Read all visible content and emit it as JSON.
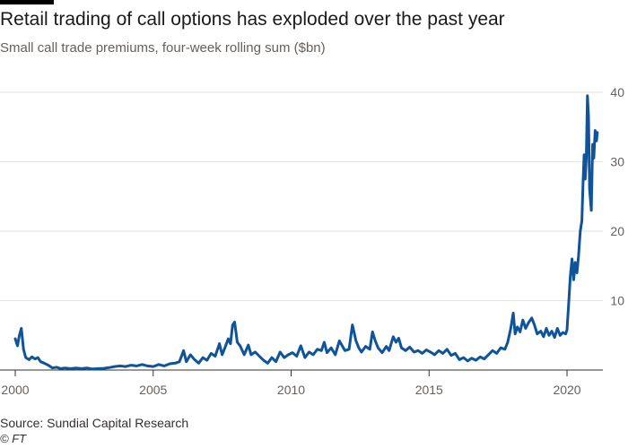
{
  "header": {
    "title": "Retail trading of call options has exploded over the past year",
    "subtitle": "Small call trade premiums, four-week rolling sum ($bn)"
  },
  "footer": {
    "source": "Source: Sundial Capital Research",
    "credit": "© FT"
  },
  "colors": {
    "line": "#0f5499",
    "grid": "#e6e2de",
    "axis": "#33302e",
    "text_muted": "#66605c"
  },
  "chart_data": {
    "type": "line",
    "title": "Retail trading of call options has exploded over the past year",
    "subtitle": "Small call trade premiums, four-week rolling sum ($bn)",
    "xlabel": "",
    "ylabel": "",
    "xlim": [
      2000,
      2021.3
    ],
    "ylim": [
      0,
      40
    ],
    "x_ticks": [
      2000,
      2005,
      2010,
      2015,
      2020
    ],
    "y_ticks": [
      10,
      20,
      30,
      40
    ],
    "y_axis_side": "right",
    "grid": "horizontal",
    "series": [
      {
        "name": "Small call trade premiums",
        "points": [
          [
            2000.0,
            4.5
          ],
          [
            2000.08,
            3.5
          ],
          [
            2000.15,
            5.0
          ],
          [
            2000.22,
            6.0
          ],
          [
            2000.3,
            3.0
          ],
          [
            2000.38,
            1.8
          ],
          [
            2000.5,
            1.5
          ],
          [
            2000.6,
            1.9
          ],
          [
            2000.72,
            1.6
          ],
          [
            2000.82,
            1.8
          ],
          [
            2000.92,
            1.2
          ],
          [
            2001.05,
            1.0
          ],
          [
            2001.2,
            0.7
          ],
          [
            2001.35,
            0.3
          ],
          [
            2001.5,
            0.4
          ],
          [
            2001.65,
            0.2
          ],
          [
            2001.8,
            0.3
          ],
          [
            2002.0,
            0.2
          ],
          [
            2002.2,
            0.3
          ],
          [
            2002.4,
            0.2
          ],
          [
            2002.6,
            0.3
          ],
          [
            2002.8,
            0.15
          ],
          [
            2003.0,
            0.2
          ],
          [
            2003.2,
            0.25
          ],
          [
            2003.4,
            0.35
          ],
          [
            2003.6,
            0.5
          ],
          [
            2003.8,
            0.6
          ],
          [
            2004.0,
            0.5
          ],
          [
            2004.2,
            0.7
          ],
          [
            2004.4,
            0.6
          ],
          [
            2004.6,
            0.8
          ],
          [
            2004.8,
            0.6
          ],
          [
            2005.0,
            0.5
          ],
          [
            2005.2,
            0.8
          ],
          [
            2005.4,
            0.6
          ],
          [
            2005.6,
            0.9
          ],
          [
            2005.8,
            1.0
          ],
          [
            2005.95,
            1.2
          ],
          [
            2006.1,
            2.8
          ],
          [
            2006.2,
            1.2
          ],
          [
            2006.35,
            2.2
          ],
          [
            2006.5,
            1.5
          ],
          [
            2006.65,
            1.0
          ],
          [
            2006.8,
            1.8
          ],
          [
            2006.95,
            1.4
          ],
          [
            2007.1,
            2.4
          ],
          [
            2007.25,
            2.0
          ],
          [
            2007.4,
            3.8
          ],
          [
            2007.5,
            2.2
          ],
          [
            2007.6,
            3.2
          ],
          [
            2007.72,
            4.5
          ],
          [
            2007.8,
            3.8
          ],
          [
            2007.88,
            6.5
          ],
          [
            2007.95,
            6.9
          ],
          [
            2008.05,
            4.0
          ],
          [
            2008.15,
            3.5
          ],
          [
            2008.3,
            2.2
          ],
          [
            2008.45,
            3.6
          ],
          [
            2008.55,
            2.2
          ],
          [
            2008.7,
            2.6
          ],
          [
            2008.85,
            2.0
          ],
          [
            2009.0,
            1.4
          ],
          [
            2009.15,
            1.0
          ],
          [
            2009.3,
            1.8
          ],
          [
            2009.45,
            1.2
          ],
          [
            2009.6,
            2.6
          ],
          [
            2009.75,
            1.8
          ],
          [
            2009.9,
            2.2
          ],
          [
            2010.05,
            2.5
          ],
          [
            2010.2,
            2.0
          ],
          [
            2010.35,
            3.5
          ],
          [
            2010.5,
            1.8
          ],
          [
            2010.65,
            2.6
          ],
          [
            2010.8,
            2.2
          ],
          [
            2010.95,
            3.0
          ],
          [
            2011.1,
            2.8
          ],
          [
            2011.2,
            4.0
          ],
          [
            2011.3,
            2.5
          ],
          [
            2011.45,
            3.2
          ],
          [
            2011.6,
            2.2
          ],
          [
            2011.75,
            4.2
          ],
          [
            2011.85,
            3.5
          ],
          [
            2011.95,
            2.8
          ],
          [
            2012.1,
            3.0
          ],
          [
            2012.22,
            6.5
          ],
          [
            2012.35,
            4.2
          ],
          [
            2012.45,
            3.2
          ],
          [
            2012.55,
            2.6
          ],
          [
            2012.7,
            3.4
          ],
          [
            2012.85,
            3.0
          ],
          [
            2012.95,
            5.5
          ],
          [
            2013.05,
            4.2
          ],
          [
            2013.15,
            3.2
          ],
          [
            2013.3,
            2.5
          ],
          [
            2013.45,
            3.4
          ],
          [
            2013.55,
            2.8
          ],
          [
            2013.7,
            4.8
          ],
          [
            2013.8,
            4.0
          ],
          [
            2013.9,
            4.6
          ],
          [
            2014.0,
            3.2
          ],
          [
            2014.15,
            2.8
          ],
          [
            2014.3,
            3.3
          ],
          [
            2014.45,
            2.6
          ],
          [
            2014.6,
            2.8
          ],
          [
            2014.75,
            2.4
          ],
          [
            2014.9,
            2.9
          ],
          [
            2015.05,
            2.6
          ],
          [
            2015.2,
            2.2
          ],
          [
            2015.35,
            2.8
          ],
          [
            2015.5,
            2.4
          ],
          [
            2015.65,
            3.0
          ],
          [
            2015.8,
            2.1
          ],
          [
            2015.95,
            2.4
          ],
          [
            2016.1,
            1.5
          ],
          [
            2016.25,
            1.8
          ],
          [
            2016.4,
            1.3
          ],
          [
            2016.55,
            1.7
          ],
          [
            2016.7,
            1.4
          ],
          [
            2016.85,
            1.9
          ],
          [
            2017.0,
            1.6
          ],
          [
            2017.15,
            2.2
          ],
          [
            2017.3,
            2.8
          ],
          [
            2017.45,
            2.4
          ],
          [
            2017.6,
            3.2
          ],
          [
            2017.75,
            3.0
          ],
          [
            2017.85,
            4.0
          ],
          [
            2017.95,
            5.8
          ],
          [
            2018.05,
            8.2
          ],
          [
            2018.12,
            5.2
          ],
          [
            2018.2,
            6.2
          ],
          [
            2018.3,
            5.5
          ],
          [
            2018.4,
            7.2
          ],
          [
            2018.5,
            6.0
          ],
          [
            2018.6,
            6.8
          ],
          [
            2018.72,
            7.5
          ],
          [
            2018.82,
            6.5
          ],
          [
            2018.92,
            5.2
          ],
          [
            2019.05,
            5.6
          ],
          [
            2019.15,
            4.8
          ],
          [
            2019.25,
            6.0
          ],
          [
            2019.35,
            5.0
          ],
          [
            2019.45,
            5.6
          ],
          [
            2019.55,
            4.7
          ],
          [
            2019.65,
            6.0
          ],
          [
            2019.75,
            5.0
          ],
          [
            2019.85,
            5.4
          ],
          [
            2019.95,
            5.2
          ],
          [
            2020.0,
            5.8
          ],
          [
            2020.05,
            9.0
          ],
          [
            2020.12,
            13.5
          ],
          [
            2020.18,
            16.0
          ],
          [
            2020.24,
            13.0
          ],
          [
            2020.3,
            15.5
          ],
          [
            2020.36,
            14.0
          ],
          [
            2020.42,
            16.5
          ],
          [
            2020.48,
            20.0
          ],
          [
            2020.54,
            21.5
          ],
          [
            2020.58,
            27.0
          ],
          [
            2020.62,
            31.0
          ],
          [
            2020.66,
            27.5
          ],
          [
            2020.7,
            30.5
          ],
          [
            2020.74,
            39.5
          ],
          [
            2020.78,
            36.5
          ],
          [
            2020.82,
            26.0
          ],
          [
            2020.88,
            23.0
          ],
          [
            2020.93,
            32.5
          ],
          [
            2020.97,
            30.5
          ],
          [
            2021.02,
            34.5
          ],
          [
            2021.07,
            33.0
          ],
          [
            2021.1,
            34.2
          ]
        ]
      }
    ]
  }
}
